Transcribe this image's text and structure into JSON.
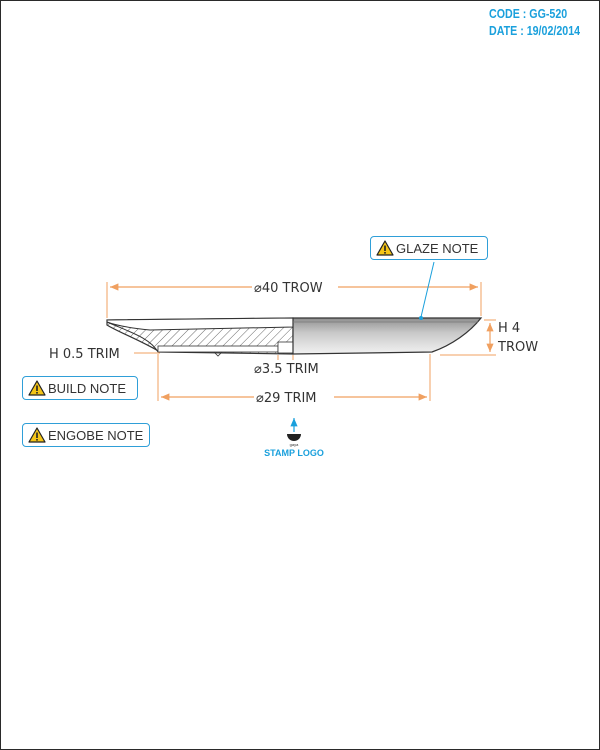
{
  "header": {
    "code": "CODE : GG-520",
    "date": "DATE : 19/02/2014"
  },
  "notes": {
    "glaze": "GLAZE NOTE",
    "build": "BUILD NOTE",
    "engobe": "ENGOBE NOTE"
  },
  "dimensions": {
    "outer_diameter": "⌀40 TROW",
    "height_label_1": "H 4",
    "height_label_2": "TROW",
    "thickness": "H 0.5 TRIM",
    "small_diameter": "⌀3.5 TRIM",
    "foot_diameter": "⌀29 TRIM"
  },
  "stamp": {
    "label": "STAMP LOGO",
    "word": "gaya"
  },
  "colors": {
    "accent_blue": "#1aa0dc",
    "dimension_orange": "#f0a060",
    "glaze_grey": "#9a9a9a"
  }
}
